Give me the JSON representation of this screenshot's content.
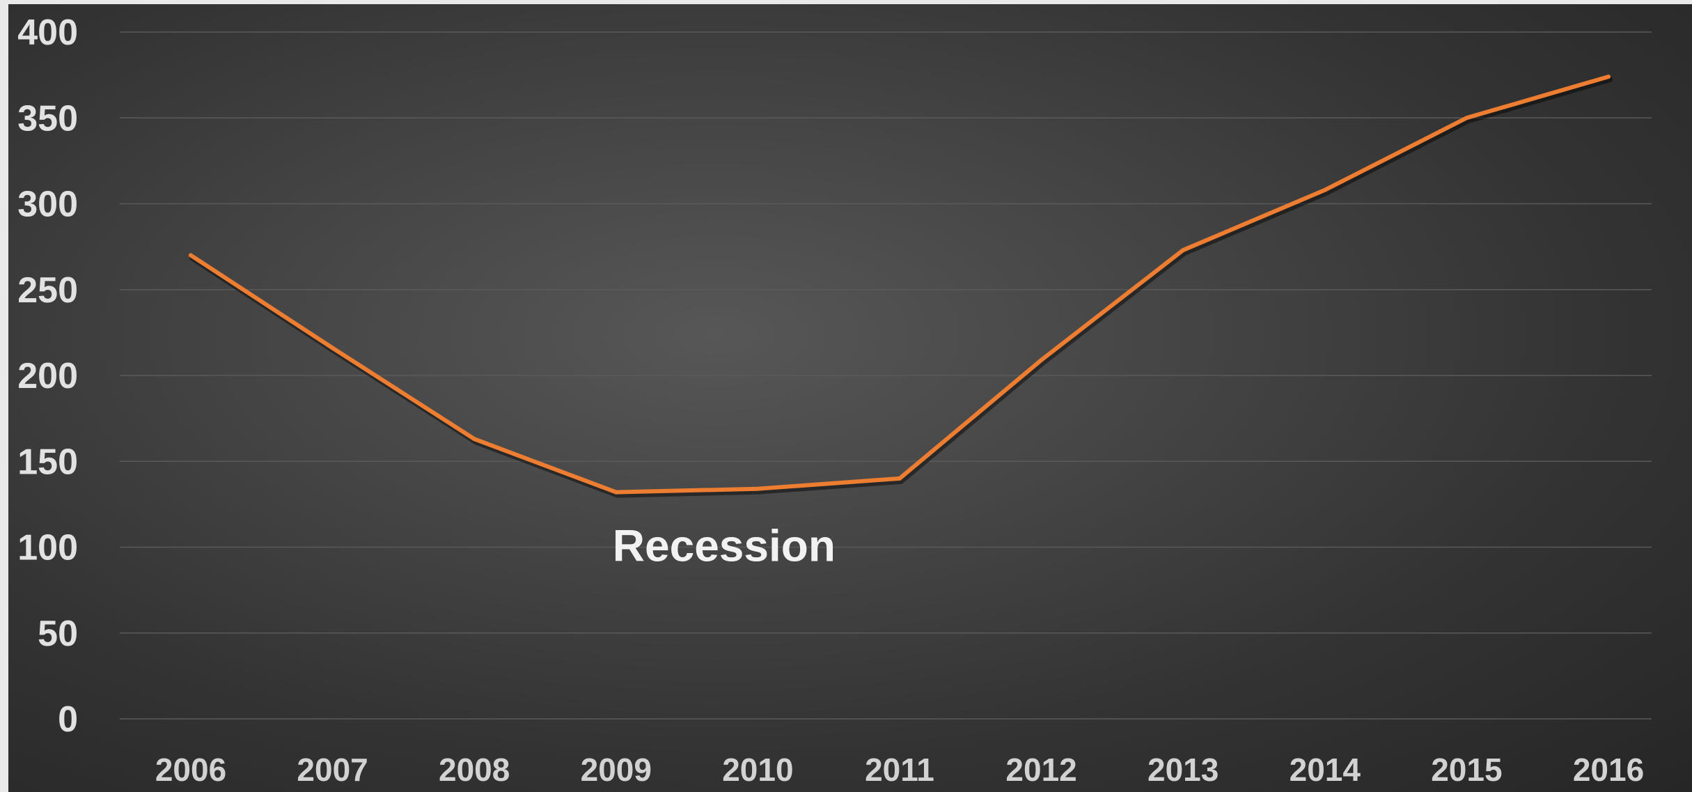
{
  "chart_data": {
    "type": "line",
    "categories": [
      "2006",
      "2007",
      "2008",
      "2009",
      "2010",
      "2011",
      "2012",
      "2013",
      "2014",
      "2015",
      "2016"
    ],
    "series": [
      {
        "values": [
          270,
          216,
          163,
          132,
          134,
          140,
          209,
          273,
          308,
          350,
          374
        ],
        "color": "#ed7d31"
      }
    ],
    "ylim": [
      0,
      400
    ],
    "yticks": [
      "0",
      "50",
      "100",
      "150",
      "200",
      "250",
      "300",
      "350",
      "400"
    ],
    "grid": true,
    "legend": "none",
    "title": "",
    "xlabel": "",
    "ylabel": "",
    "annotations": [
      {
        "text": "Recession",
        "x": "2009",
        "y": 100
      }
    ],
    "colors": {
      "background": "#3a3a3a",
      "gridline": "#5a5a5a",
      "tick_text": "#e2e2e2",
      "line": "#ed7d31"
    }
  }
}
